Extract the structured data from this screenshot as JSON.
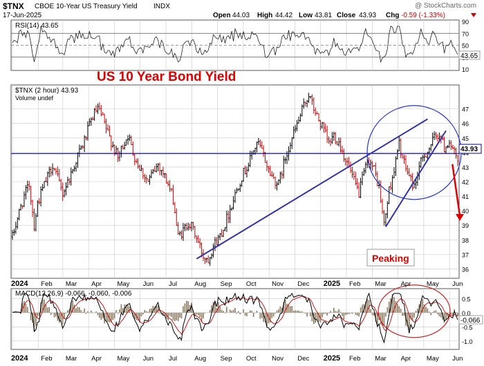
{
  "header": {
    "symbol": "$TNX",
    "name": "CBOE 10-Year US Treasury Yield",
    "exchange": "INDX",
    "date": "17-Jun-2025",
    "watermark": "@ StockCharts.com",
    "open_label": "Open",
    "open": "44.03",
    "high_label": "High",
    "high": "44.42",
    "low_label": "Low",
    "low": "43.81",
    "close_label": "Close",
    "close": "43.93",
    "chg_label": "Chg",
    "chg": "-0.59 (-1.33%)",
    "chg_arrow": "down-triangle-icon"
  },
  "annotations": {
    "title": "US 10 Year Bond  Yield",
    "peaking": "Peaking"
  },
  "colors": {
    "price_up": "#000000",
    "price_down": "#cc0000",
    "trend_line": "#3333aa",
    "support_line": "#0000aa",
    "circle_blue": "#2233cc",
    "circle_red": "#cc2222",
    "annotation_red": "#dd0000",
    "volume": "#8a7a60",
    "grid": "#c8c8c8"
  },
  "chart_data": [
    {
      "type": "line",
      "panel": "RSI",
      "legend": "RSI(14) 43.65",
      "last_value": "43.65",
      "ylim": [
        10,
        90
      ],
      "y_ticks": [
        "90",
        "70",
        "50",
        "30",
        "10"
      ],
      "reference_lines": [
        70,
        30
      ],
      "dashed_line": 50
    },
    {
      "type": "candlestick",
      "panel": "price",
      "legend": "$TNX (2 hour) 43.93",
      "volume_legend": "Volume undef",
      "last_value": "43.93",
      "ylim": [
        35.5,
        48.5
      ],
      "y_ticks": [
        "47",
        "46",
        "45",
        "44",
        "43",
        "42",
        "41",
        "40",
        "39",
        "38",
        "37",
        "36"
      ],
      "horizontal_line": 43.93,
      "x_labels": [
        "2024",
        "Feb",
        "Mar",
        "Apr",
        "May",
        "Jun",
        "Jul",
        "Aug",
        "Sep",
        "Oct",
        "Nov",
        "Dec",
        "2025",
        "Feb",
        "Mar",
        "Apr",
        "May",
        "Jun"
      ],
      "path": [
        [
          0,
          38.2
        ],
        [
          3,
          39.5
        ],
        [
          7,
          41.0
        ],
        [
          10,
          41.8
        ],
        [
          13,
          39.0
        ],
        [
          15,
          40.5
        ],
        [
          18,
          41.5
        ],
        [
          21,
          42.3
        ],
        [
          24,
          43.2
        ],
        [
          27,
          42.2
        ],
        [
          30,
          41.2
        ],
        [
          33,
          42.0
        ],
        [
          36,
          42.8
        ],
        [
          39,
          43.8
        ],
        [
          42,
          44.5
        ],
        [
          45,
          45.5
        ],
        [
          48,
          46.5
        ],
        [
          51,
          47.0
        ],
        [
          54,
          46.3
        ],
        [
          57,
          45.3
        ],
        [
          60,
          44.5
        ],
        [
          63,
          43.6
        ],
        [
          66,
          44.5
        ],
        [
          69,
          45.2
        ],
        [
          72,
          44.0
        ],
        [
          75,
          43.2
        ],
        [
          78,
          42.6
        ],
        [
          81,
          42.0
        ],
        [
          84,
          42.6
        ],
        [
          87,
          43.2
        ],
        [
          90,
          42.6
        ],
        [
          93,
          41.8
        ],
        [
          96,
          40.8
        ],
        [
          99,
          38.2
        ],
        [
          102,
          38.6
        ],
        [
          105,
          39.2
        ],
        [
          108,
          38.7
        ],
        [
          111,
          37.8
        ],
        [
          114,
          36.9
        ],
        [
          117,
          36.7
        ],
        [
          120,
          37.6
        ],
        [
          123,
          38.1
        ],
        [
          126,
          38.8
        ],
        [
          129,
          39.8
        ],
        [
          132,
          40.8
        ],
        [
          135,
          41.8
        ],
        [
          138,
          42.6
        ],
        [
          141,
          43.2
        ],
        [
          144,
          44.2
        ],
        [
          147,
          44.6
        ],
        [
          150,
          43.8
        ],
        [
          153,
          42.8
        ],
        [
          156,
          42.2
        ],
        [
          159,
          41.8
        ],
        [
          162,
          43.2
        ],
        [
          165,
          44.4
        ],
        [
          168,
          45.3
        ],
        [
          171,
          46.2
        ],
        [
          174,
          47.2
        ],
        [
          177,
          48.0
        ],
        [
          180,
          47.0
        ],
        [
          183,
          46.2
        ],
        [
          186,
          45.5
        ],
        [
          189,
          44.6
        ],
        [
          192,
          45.2
        ],
        [
          195,
          44.7
        ],
        [
          198,
          43.8
        ],
        [
          201,
          43.0
        ],
        [
          204,
          42.0
        ],
        [
          207,
          41.2
        ],
        [
          210,
          42.6
        ],
        [
          213,
          43.5
        ],
        [
          216,
          42.8
        ],
        [
          219,
          41.6
        ],
        [
          222,
          39.0
        ],
        [
          225,
          41.4
        ],
        [
          228,
          42.8
        ],
        [
          231,
          44.6
        ],
        [
          234,
          43.2
        ],
        [
          237,
          42.4
        ],
        [
          240,
          41.6
        ],
        [
          243,
          43.0
        ],
        [
          246,
          43.8
        ],
        [
          249,
          44.3
        ],
        [
          252,
          45.0
        ],
        [
          255,
          45.3
        ],
        [
          258,
          44.3
        ],
        [
          261,
          44.8
        ],
        [
          264,
          43.9
        ],
        [
          266,
          43.2
        ]
      ],
      "trend_lines": [
        {
          "from": [
            110,
            36.7
          ],
          "to": [
            248,
            46.3
          ]
        },
        {
          "from": [
            223,
            38.9
          ],
          "to": [
            259,
            45.5
          ]
        }
      ],
      "forecast_arrow": {
        "from": [
          262,
          43.2
        ],
        "to": [
          266,
          39.3
        ]
      }
    },
    {
      "type": "line",
      "panel": "MACD",
      "legend": "MACD(12,26,9) -0.066, -0.060, -0.006",
      "series": [
        {
          "name": "MACD",
          "color": "#000000"
        },
        {
          "name": "Signal",
          "color": "#cc0000"
        },
        {
          "name": "Histogram",
          "color": "#8a7a60"
        }
      ],
      "last_value": "-0.066",
      "ylim": [
        -1.25,
        0.8
      ],
      "y_ticks": [
        "0.5",
        "0.0",
        "-0.5",
        "-1.0"
      ],
      "x_labels": [
        "2024",
        "Feb",
        "Mar",
        "Apr",
        "May",
        "Jun",
        "Jul",
        "Aug",
        "Sep",
        "Oct",
        "Nov",
        "Dec",
        "2025",
        "Feb",
        "Mar",
        "Apr",
        "May",
        "Jun"
      ]
    }
  ]
}
